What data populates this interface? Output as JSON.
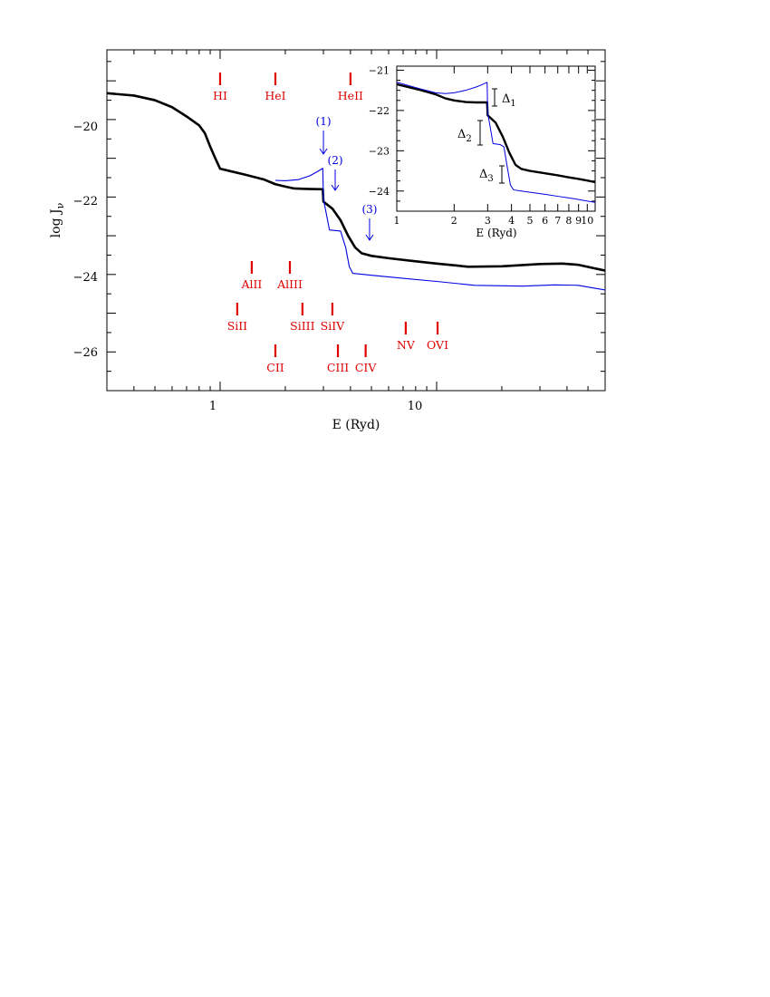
{
  "chart_data": [
    {
      "type": "line",
      "xlabel": "E (Ryd)",
      "ylabel": "log J",
      "ylabel_subscript": "ν",
      "xscale": "log",
      "xlim": [
        0.3,
        60
      ],
      "ylim": [
        -27,
        -18.2
      ],
      "x_tick_labels": [
        "1",
        "10"
      ],
      "y_tick_labels": [
        "−20",
        "−22",
        "−24",
        "−26"
      ],
      "series": [
        {
          "color": "#000000",
          "points": [
            [
              0.3,
              -19.32
            ],
            [
              0.4,
              -19.38
            ],
            [
              0.5,
              -19.5
            ],
            [
              0.6,
              -19.68
            ],
            [
              0.7,
              -19.92
            ],
            [
              0.8,
              -20.15
            ],
            [
              0.85,
              -20.35
            ],
            [
              0.9,
              -20.7
            ],
            [
              0.95,
              -21.0
            ],
            [
              1.0,
              -21.27
            ],
            [
              1.3,
              -21.42
            ],
            [
              1.6,
              -21.55
            ],
            [
              1.8,
              -21.67
            ],
            [
              2.0,
              -21.73
            ],
            [
              2.2,
              -21.78
            ],
            [
              2.5,
              -21.79
            ],
            [
              2.98,
              -21.8
            ],
            [
              3.0,
              -22.12
            ],
            [
              3.3,
              -22.3
            ],
            [
              3.6,
              -22.6
            ],
            [
              3.9,
              -23.0
            ],
            [
              4.2,
              -23.3
            ],
            [
              4.5,
              -23.45
            ],
            [
              5.0,
              -23.52
            ],
            [
              6.0,
              -23.58
            ],
            [
              8.0,
              -23.66
            ],
            [
              10.0,
              -23.72
            ],
            [
              14.0,
              -23.8
            ],
            [
              20.0,
              -23.79
            ],
            [
              30.0,
              -23.73
            ],
            [
              38.0,
              -23.72
            ],
            [
              45.0,
              -23.75
            ],
            [
              60.0,
              -23.9
            ]
          ]
        },
        {
          "color": "#0000e0",
          "points": [
            [
              1.8,
              -21.57
            ],
            [
              2.0,
              -21.58
            ],
            [
              2.3,
              -21.55
            ],
            [
              2.6,
              -21.45
            ],
            [
              2.8,
              -21.35
            ],
            [
              2.98,
              -21.26
            ],
            [
              3.0,
              -22.05
            ],
            [
              3.2,
              -22.85
            ],
            [
              3.6,
              -22.88
            ],
            [
              3.8,
              -23.3
            ],
            [
              3.95,
              -23.8
            ],
            [
              4.1,
              -23.97
            ],
            [
              5.0,
              -24.02
            ],
            [
              7.0,
              -24.1
            ],
            [
              10.0,
              -24.18
            ],
            [
              15.0,
              -24.28
            ],
            [
              25.0,
              -24.3
            ],
            [
              35.0,
              -24.27
            ],
            [
              45.0,
              -24.28
            ],
            [
              60.0,
              -24.4
            ]
          ]
        }
      ],
      "annotations": [
        {
          "label": "(1)",
          "x": 3.0
        },
        {
          "label": "(2)",
          "x": 3.4
        },
        {
          "label": "(3)",
          "x": 4.9
        }
      ],
      "ion_labels": [
        {
          "label": "HI",
          "x": 1.0
        },
        {
          "label": "HeI",
          "x": 1.8
        },
        {
          "label": "HeII",
          "x": 4.0
        },
        {
          "label": "AlII",
          "x": 1.4
        },
        {
          "label": "AlIII",
          "x": 2.1
        },
        {
          "label": "SiII",
          "x": 1.2
        },
        {
          "label": "SiIII",
          "x": 2.4
        },
        {
          "label": "SiIV",
          "x": 3.3
        },
        {
          "label": "NV",
          "x": 7.2
        },
        {
          "label": "OVI",
          "x": 10.1
        },
        {
          "label": "CII",
          "x": 1.8
        },
        {
          "label": "CIII",
          "x": 3.5
        },
        {
          "label": "CIV",
          "x": 4.7
        }
      ]
    },
    {
      "type": "line",
      "inset": true,
      "xlabel": "E (Ryd)",
      "xscale": "log",
      "xlim": [
        1,
        11
      ],
      "ylim": [
        -24.5,
        -20.9
      ],
      "x_tick_labels": [
        "1",
        "2",
        "3",
        "4",
        "5",
        "6",
        "7",
        "8",
        "9",
        "10"
      ],
      "y_tick_labels": [
        "−21",
        "−22",
        "−23",
        "−24"
      ],
      "series": [
        {
          "color": "#000000",
          "points": [
            [
              1.0,
              -21.35
            ],
            [
              1.3,
              -21.48
            ],
            [
              1.6,
              -21.6
            ],
            [
              1.8,
              -21.7
            ],
            [
              2.0,
              -21.75
            ],
            [
              2.3,
              -21.79
            ],
            [
              2.6,
              -21.8
            ],
            [
              2.98,
              -21.8
            ],
            [
              3.0,
              -22.12
            ],
            [
              3.3,
              -22.3
            ],
            [
              3.6,
              -22.65
            ],
            [
              3.9,
              -23.05
            ],
            [
              4.2,
              -23.35
            ],
            [
              4.5,
              -23.45
            ],
            [
              5.0,
              -23.5
            ],
            [
              6.0,
              -23.56
            ],
            [
              7.0,
              -23.61
            ],
            [
              8.0,
              -23.66
            ],
            [
              9.0,
              -23.7
            ],
            [
              10.0,
              -23.74
            ],
            [
              11.0,
              -23.78
            ]
          ]
        },
        {
          "color": "#0000e0",
          "points": [
            [
              1.0,
              -21.3
            ],
            [
              1.3,
              -21.45
            ],
            [
              1.6,
              -21.56
            ],
            [
              1.8,
              -21.58
            ],
            [
              2.0,
              -21.56
            ],
            [
              2.3,
              -21.5
            ],
            [
              2.6,
              -21.42
            ],
            [
              2.8,
              -21.36
            ],
            [
              2.98,
              -21.3
            ],
            [
              3.0,
              -22.05
            ],
            [
              3.2,
              -22.82
            ],
            [
              3.5,
              -22.85
            ],
            [
              3.65,
              -22.9
            ],
            [
              3.8,
              -23.4
            ],
            [
              3.95,
              -23.85
            ],
            [
              4.1,
              -23.97
            ],
            [
              4.5,
              -24.0
            ],
            [
              5.0,
              -24.03
            ],
            [
              6.0,
              -24.08
            ],
            [
              7.0,
              -24.13
            ],
            [
              8.0,
              -24.17
            ],
            [
              9.0,
              -24.21
            ],
            [
              10.0,
              -24.25
            ],
            [
              11.0,
              -24.28
            ]
          ]
        }
      ],
      "delta_labels": [
        {
          "label": "Δ",
          "subscript": "1"
        },
        {
          "label": "Δ",
          "subscript": "2"
        },
        {
          "label": "Δ",
          "subscript": "3"
        }
      ]
    }
  ]
}
